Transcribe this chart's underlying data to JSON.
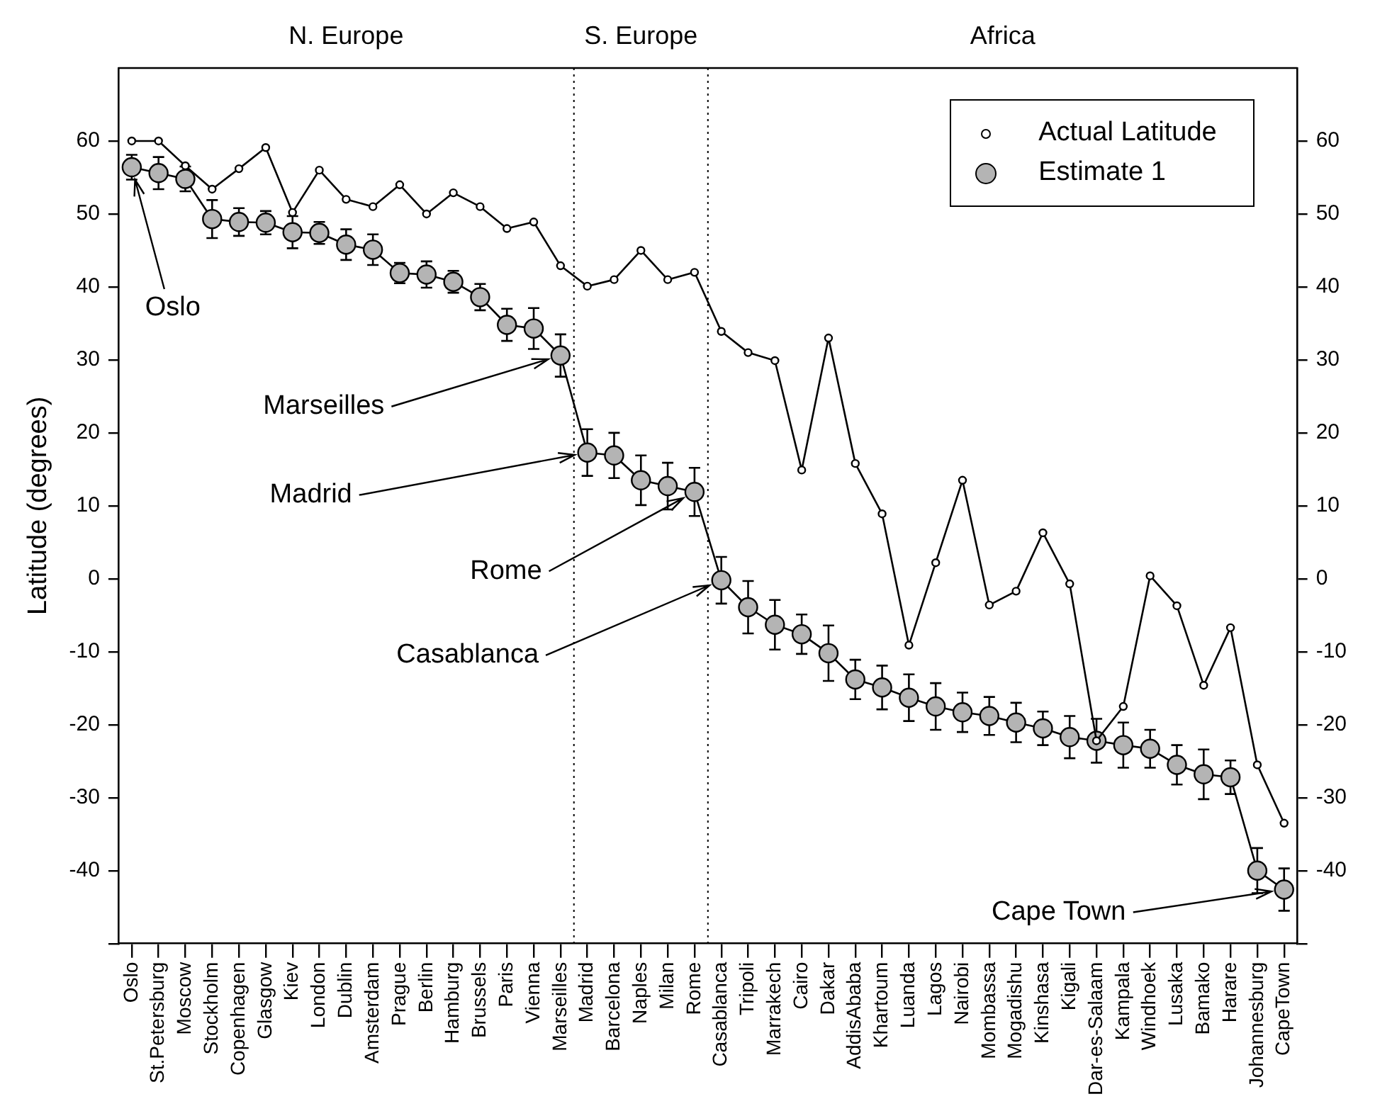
{
  "chart_data": {
    "type": "line",
    "ylabel": "Latitude (degrees)",
    "categories": [
      "Oslo",
      "St.Petersburg",
      "Moscow",
      "Stockholm",
      "Copenhagen",
      "Glasgow",
      "Kiev",
      "London",
      "Dublin",
      "Amsterdam",
      "Prague",
      "Berlin",
      "Hamburg",
      "Brussels",
      "Paris",
      "Vienna",
      "Marseilles",
      "Madrid",
      "Barcelona",
      "Naples",
      "Milan",
      "Rome",
      "Casablanca",
      "Tripoli",
      "Marrakech",
      "Cairo",
      "Dakar",
      "AddisAbaba",
      "Khartoum",
      "Luanda",
      "Lagos",
      "Nairobi",
      "Mombassa",
      "Mogadishu",
      "Kinshasa",
      "Kigali",
      "Dar-es-Salaam",
      "Kampala",
      "Windhoek",
      "Lusaka",
      "Bamako",
      "Harare",
      "Johannesburg",
      "CapeTown"
    ],
    "series": [
      {
        "name": "Actual Latitude",
        "color": "#ffffff",
        "values": [
          60,
          60,
          56.6,
          53.4,
          56.2,
          59.1,
          50.2,
          56,
          52,
          51,
          54,
          50,
          52.9,
          51,
          48,
          48.9,
          42.9,
          40.1,
          41,
          45,
          41,
          42,
          33.9,
          31,
          29.9,
          14.9,
          33,
          15.8,
          8.9,
          -9.1,
          2.2,
          13.5,
          -3.6,
          -1.7,
          6.3,
          -0.7,
          -22.2,
          -17.5,
          0.4,
          -3.7,
          -14.6,
          -6.7,
          -25.5,
          -33.5
        ]
      },
      {
        "name": "Estimate 1",
        "color": "#b4b4b4",
        "values": [
          56.4,
          55.6,
          54.8,
          49.3,
          48.9,
          48.8,
          47.5,
          47.4,
          45.8,
          45.1,
          41.9,
          41.7,
          40.7,
          38.6,
          34.8,
          34.3,
          30.6,
          17.3,
          16.9,
          13.5,
          12.7,
          11.9,
          -0.2,
          -3.9,
          -6.3,
          -7.6,
          -10.2,
          -13.8,
          -14.9,
          -16.3,
          -17.5,
          -18.3,
          -18.8,
          -19.7,
          -20.5,
          -21.7,
          -22.2,
          -22.8,
          -23.3,
          -25.5,
          -26.8,
          -27.2,
          -40,
          -42.6
        ],
        "errors": [
          1.7,
          2.2,
          1.7,
          2.6,
          1.9,
          1.6,
          2.2,
          1.5,
          2.1,
          2.1,
          1.4,
          1.8,
          1.5,
          1.8,
          2.2,
          2.8,
          2.9,
          3.2,
          3.1,
          3.4,
          3.2,
          3.3,
          3.2,
          3.6,
          3.4,
          2.7,
          3.8,
          2.7,
          3,
          3.2,
          3.2,
          2.7,
          2.6,
          2.7,
          2.3,
          2.9,
          3,
          3.1,
          2.6,
          2.7,
          3.4,
          2.3,
          3.1,
          2.9
        ]
      }
    ],
    "ylim": [
      -50,
      70
    ],
    "yticks": [
      {
        "value": -50,
        "label": null
      },
      -40,
      -30,
      -20,
      -10,
      0,
      10,
      20,
      30,
      40,
      50,
      60
    ],
    "y2lim": [
      -50,
      70
    ],
    "y2ticks": [
      {
        "value": -50,
        "label": null
      },
      -40,
      -30,
      -20,
      -10,
      0,
      10,
      20,
      30,
      40,
      50,
      60
    ],
    "annotations": [
      "N. Europe",
      "S. Europe",
      "Africa",
      {
        "text": "Oslo",
        "x": "Oslo",
        "y": 56.4
      },
      {
        "text": "Marseilles",
        "x": "Marseilles",
        "y": 30.6
      },
      {
        "text": "Madrid",
        "x": "Madrid",
        "y": 17.3
      },
      {
        "text": "Rome",
        "x": "Rome",
        "y": 11.9
      },
      {
        "text": "Casablanca",
        "x": "Casablanca",
        "y": -0.2
      },
      {
        "text": "Cape Town",
        "x": "CapeTown",
        "y": -42.6
      }
    ],
    "legend": "top right",
    "marker": "circle",
    "line_style": "solid",
    "grid": false
  }
}
